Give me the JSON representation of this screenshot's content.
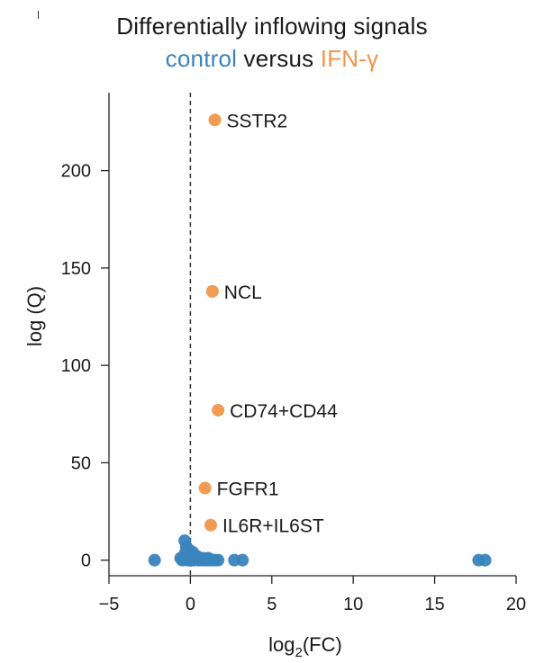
{
  "title": "Differentially inflowing signals",
  "subtitle": {
    "part1": "control",
    "part2": " versus ",
    "part3": "IFN-γ"
  },
  "colors": {
    "control": "#3a84be",
    "ifn": "#f0964a",
    "axis": "#222222",
    "text": "#1a1a1a"
  },
  "chart_data": {
    "type": "scatter",
    "title": "Differentially inflowing signals",
    "subtitle": "control versus IFN-γ",
    "xlabel": "log2(FC)",
    "ylabel": "log (Q)",
    "xlim": [
      -5,
      20
    ],
    "ylim": [
      -8,
      240
    ],
    "xticks": [
      -5,
      0,
      5,
      10,
      15,
      20
    ],
    "yticks": [
      0,
      50,
      100,
      150,
      200
    ],
    "xtick_labels": [
      "−5",
      "0",
      "5",
      "10",
      "15",
      "20"
    ],
    "ytick_labels": [
      "0",
      "50",
      "100",
      "150",
      "200"
    ],
    "reference_line": {
      "x": 0,
      "style": "dashed"
    },
    "grid": false,
    "legend": "none (series colors in subtitle)",
    "series": [
      {
        "name": "control",
        "color": "#3a84be",
        "points": [
          {
            "x": -2.2,
            "y": 0
          },
          {
            "x": -0.6,
            "y": 1
          },
          {
            "x": -0.5,
            "y": 0
          },
          {
            "x": -0.4,
            "y": 2
          },
          {
            "x": -0.35,
            "y": 10
          },
          {
            "x": -0.3,
            "y": 4
          },
          {
            "x": -0.25,
            "y": 7
          },
          {
            "x": -0.2,
            "y": 0
          },
          {
            "x": -0.15,
            "y": 3
          },
          {
            "x": -0.1,
            "y": 1
          },
          {
            "x": -0.05,
            "y": 5
          },
          {
            "x": 0.0,
            "y": 0
          },
          {
            "x": 0.05,
            "y": 2
          },
          {
            "x": 0.1,
            "y": 1
          },
          {
            "x": 0.15,
            "y": 4
          },
          {
            "x": 0.2,
            "y": 0
          },
          {
            "x": 0.3,
            "y": 1
          },
          {
            "x": 0.4,
            "y": 2
          },
          {
            "x": 0.5,
            "y": 0
          },
          {
            "x": 0.6,
            "y": 1
          },
          {
            "x": 0.7,
            "y": 0
          },
          {
            "x": 0.8,
            "y": 1
          },
          {
            "x": 0.9,
            "y": 0
          },
          {
            "x": 1.0,
            "y": 0
          },
          {
            "x": 1.1,
            "y": 1
          },
          {
            "x": 1.2,
            "y": 0
          },
          {
            "x": 1.3,
            "y": 0
          },
          {
            "x": 1.5,
            "y": 0
          },
          {
            "x": 1.7,
            "y": 0
          },
          {
            "x": 2.7,
            "y": 0
          },
          {
            "x": 3.2,
            "y": 0
          },
          {
            "x": 17.7,
            "y": 0
          },
          {
            "x": 18.1,
            "y": 0
          }
        ]
      },
      {
        "name": "IFN-γ",
        "color": "#f0964a",
        "points": [
          {
            "x": 1.5,
            "y": 226,
            "label": "SSTR2"
          },
          {
            "x": 1.35,
            "y": 138,
            "label": "NCL"
          },
          {
            "x": 1.7,
            "y": 77,
            "label": "CD74+CD44"
          },
          {
            "x": 0.9,
            "y": 37,
            "label": "FGFR1"
          },
          {
            "x": 1.25,
            "y": 18,
            "label": "IL6R+IL6ST"
          }
        ]
      }
    ]
  }
}
